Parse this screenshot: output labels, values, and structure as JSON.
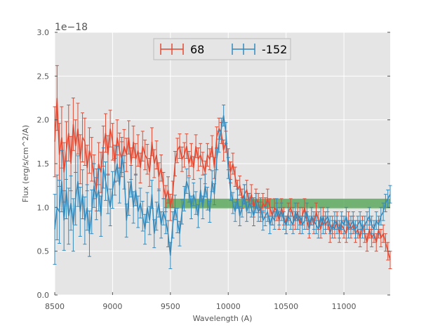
{
  "chart_data": {
    "type": "line",
    "xlabel": "Wavelength (A)",
    "ylabel": "Flux (erg/s/cm^2/A)",
    "offset_text": "1e−18",
    "xlim": [
      8500,
      11400
    ],
    "ylim": [
      0.0,
      3.0
    ],
    "x_ticks": [
      8500,
      9000,
      9500,
      10000,
      10500,
      11000
    ],
    "y_ticks": [
      0.0,
      0.5,
      1.0,
      1.5,
      2.0,
      2.5,
      3.0
    ],
    "x_tick_labels": [
      "8500",
      "9000",
      "9500",
      "10000",
      "10500",
      "11000"
    ],
    "y_tick_labels": [
      "0.0",
      "0.5",
      "1.0",
      "1.5",
      "2.0",
      "2.5",
      "3.0"
    ],
    "grid": true,
    "legend_position": "top-center",
    "background_color": "#e5e5e5",
    "band": {
      "x0": 9450,
      "x1": 11400,
      "y0": 0.99,
      "y1": 1.1,
      "color": "#5da85d"
    },
    "series": [
      {
        "name": "68",
        "color": "#e24a33",
        "x": [
          8500,
          8520,
          8540,
          8560,
          8580,
          8600,
          8620,
          8640,
          8660,
          8680,
          8700,
          8720,
          8740,
          8760,
          8780,
          8800,
          8820,
          8840,
          8860,
          8880,
          8900,
          8920,
          8940,
          8960,
          8980,
          9000,
          9020,
          9040,
          9060,
          9080,
          9100,
          9120,
          9140,
          9160,
          9180,
          9200,
          9220,
          9240,
          9260,
          9280,
          9300,
          9320,
          9340,
          9360,
          9380,
          9400,
          9420,
          9440,
          9460,
          9480,
          9500,
          9520,
          9540,
          9560,
          9580,
          9600,
          9620,
          9640,
          9660,
          9680,
          9700,
          9720,
          9740,
          9760,
          9780,
          9800,
          9820,
          9840,
          9860,
          9880,
          9900,
          9920,
          9940,
          9960,
          9980,
          10000,
          10020,
          10040,
          10060,
          10080,
          10100,
          10120,
          10140,
          10160,
          10180,
          10200,
          10220,
          10240,
          10260,
          10280,
          10300,
          10320,
          10340,
          10360,
          10380,
          10400,
          10420,
          10440,
          10460,
          10480,
          10500,
          10520,
          10540,
          10560,
          10580,
          10600,
          10620,
          10640,
          10660,
          10680,
          10700,
          10720,
          10740,
          10760,
          10780,
          10800,
          10820,
          10840,
          10860,
          10880,
          10900,
          10920,
          10940,
          10960,
          10980,
          11000,
          11020,
          11040,
          11060,
          11080,
          11100,
          11120,
          11140,
          11160,
          11180,
          11200,
          11220,
          11240,
          11260,
          11280,
          11300,
          11320,
          11340,
          11360,
          11380,
          11400
        ],
        "y": [
          1.75,
          2.25,
          1.6,
          1.8,
          1.4,
          1.65,
          1.85,
          1.5,
          1.95,
          1.7,
          1.9,
          1.55,
          1.8,
          1.75,
          1.45,
          1.65,
          1.55,
          1.35,
          1.2,
          1.5,
          1.4,
          1.7,
          1.85,
          1.6,
          1.9,
          1.75,
          1.5,
          1.8,
          1.65,
          1.55,
          1.7,
          1.6,
          1.8,
          1.5,
          1.75,
          1.55,
          1.65,
          1.45,
          1.7,
          1.6,
          1.55,
          1.4,
          1.75,
          1.5,
          1.6,
          1.35,
          1.45,
          1.25,
          1.1,
          1.2,
          1.0,
          1.15,
          1.5,
          1.65,
          1.7,
          1.55,
          1.6,
          1.7,
          1.5,
          1.6,
          1.45,
          1.7,
          1.55,
          1.6,
          1.5,
          1.4,
          1.6,
          1.55,
          1.7,
          1.45,
          1.8,
          1.9,
          1.85,
          1.65,
          1.75,
          1.55,
          1.4,
          1.5,
          1.35,
          1.2,
          1.25,
          1.1,
          1.15,
          1.2,
          1.05,
          1.15,
          1.0,
          1.1,
          1.05,
          0.95,
          1.05,
          1.0,
          1.1,
          1.0,
          0.9,
          1.0,
          0.95,
          0.85,
          1.0,
          0.9,
          0.8,
          0.95,
          1.0,
          0.9,
          0.85,
          0.95,
          0.8,
          0.9,
          1.0,
          0.85,
          0.75,
          0.9,
          0.8,
          0.95,
          0.85,
          0.75,
          0.9,
          0.8,
          0.85,
          0.7,
          0.8,
          0.75,
          0.85,
          0.7,
          0.8,
          0.75,
          0.7,
          0.85,
          0.75,
          0.8,
          0.7,
          0.75,
          0.65,
          0.8,
          0.7,
          0.6,
          0.75,
          0.65,
          0.7,
          0.6,
          0.75,
          0.65,
          0.7,
          0.6,
          0.5,
          0.4
        ],
        "err": [
          0.4,
          0.37,
          0.36,
          0.35,
          0.34,
          0.33,
          0.32,
          0.31,
          0.3,
          0.3,
          0.29,
          0.28,
          0.28,
          0.27,
          0.26,
          0.26,
          0.25,
          0.25,
          0.24,
          0.24,
          0.23,
          0.23,
          0.22,
          0.22,
          0.21,
          0.21,
          0.21,
          0.2,
          0.2,
          0.2,
          0.19,
          0.19,
          0.19,
          0.18,
          0.18,
          0.18,
          0.18,
          0.17,
          0.17,
          0.17,
          0.17,
          0.16,
          0.16,
          0.16,
          0.16,
          0.16,
          0.15,
          0.15,
          0.15,
          0.15,
          0.15,
          0.15,
          0.14,
          0.14,
          0.14,
          0.14,
          0.14,
          0.14,
          0.14,
          0.13,
          0.13,
          0.13,
          0.13,
          0.13,
          0.13,
          0.13,
          0.13,
          0.12,
          0.12,
          0.12,
          0.12,
          0.12,
          0.12,
          0.12,
          0.12,
          0.12,
          0.12,
          0.12,
          0.11,
          0.11,
          0.11,
          0.11,
          0.11,
          0.11,
          0.11,
          0.11,
          0.11,
          0.11,
          0.11,
          0.11,
          0.11,
          0.11,
          0.11,
          0.1,
          0.1,
          0.1,
          0.1,
          0.1,
          0.1,
          0.1,
          0.1,
          0.1,
          0.1,
          0.1,
          0.1,
          0.1,
          0.1,
          0.1,
          0.1,
          0.1,
          0.1,
          0.1,
          0.1,
          0.1,
          0.1,
          0.1,
          0.1,
          0.1,
          0.1,
          0.1,
          0.1,
          0.1,
          0.1,
          0.1,
          0.1,
          0.1,
          0.1,
          0.1,
          0.1,
          0.1,
          0.1,
          0.1,
          0.1,
          0.1,
          0.1,
          0.1,
          0.1,
          0.1,
          0.1,
          0.1,
          0.1,
          0.1,
          0.1,
          0.1,
          0.1,
          0.1
        ]
      },
      {
        "name": "-152",
        "color": "#348abd",
        "x": [
          8500,
          8520,
          8540,
          8560,
          8580,
          8600,
          8620,
          8640,
          8660,
          8680,
          8700,
          8720,
          8740,
          8760,
          8780,
          8800,
          8820,
          8840,
          8860,
          8880,
          8900,
          8920,
          8940,
          8960,
          8980,
          9000,
          9020,
          9040,
          9060,
          9080,
          9100,
          9120,
          9140,
          9160,
          9180,
          9200,
          9220,
          9240,
          9260,
          9280,
          9300,
          9320,
          9340,
          9360,
          9380,
          9400,
          9420,
          9440,
          9460,
          9480,
          9500,
          9520,
          9540,
          9560,
          9580,
          9600,
          9620,
          9640,
          9660,
          9680,
          9700,
          9720,
          9740,
          9760,
          9780,
          9800,
          9820,
          9840,
          9860,
          9880,
          9900,
          9920,
          9940,
          9960,
          9980,
          10000,
          10020,
          10040,
          10060,
          10080,
          10100,
          10120,
          10140,
          10160,
          10180,
          10200,
          10220,
          10240,
          10260,
          10280,
          10300,
          10320,
          10340,
          10360,
          10380,
          10400,
          10420,
          10440,
          10460,
          10480,
          10500,
          10520,
          10540,
          10560,
          10580,
          10600,
          10620,
          10640,
          10660,
          10680,
          10700,
          10720,
          10740,
          10760,
          10780,
          10800,
          10820,
          10840,
          10860,
          10880,
          10900,
          10920,
          10940,
          10960,
          10980,
          11000,
          11020,
          11040,
          11060,
          11080,
          11100,
          11120,
          11140,
          11160,
          11180,
          11200,
          11220,
          11240,
          11260,
          11280,
          11300,
          11320,
          11340,
          11360,
          11380,
          11400
        ],
        "y": [
          0.75,
          1.0,
          0.95,
          1.3,
          0.85,
          1.2,
          0.9,
          1.05,
          0.8,
          1.1,
          1.3,
          0.95,
          1.15,
          0.85,
          1.0,
          0.7,
          0.95,
          1.25,
          1.1,
          1.2,
          0.9,
          1.45,
          1.3,
          1.15,
          1.0,
          1.2,
          1.35,
          1.5,
          1.25,
          1.6,
          1.4,
          0.85,
          1.1,
          1.3,
          1.0,
          1.2,
          0.95,
          1.05,
          0.9,
          0.75,
          1.0,
          0.85,
          1.15,
          0.7,
          0.9,
          1.05,
          0.8,
          0.95,
          0.85,
          0.7,
          0.45,
          0.8,
          1.0,
          0.85,
          0.7,
          0.95,
          1.1,
          1.3,
          1.2,
          1.0,
          1.15,
          1.05,
          0.9,
          1.2,
          1.0,
          1.25,
          1.1,
          0.95,
          1.3,
          1.15,
          1.55,
          1.75,
          1.9,
          2.05,
          1.85,
          1.45,
          1.2,
          1.05,
          0.95,
          1.1,
          0.9,
          1.0,
          1.15,
          0.95,
          1.05,
          1.0,
          0.9,
          1.05,
          0.95,
          1.0,
          0.85,
          0.9,
          0.95,
          0.8,
          0.9,
          0.85,
          1.0,
          0.9,
          0.95,
          0.85,
          0.8,
          0.9,
          0.85,
          0.8,
          0.95,
          0.85,
          0.9,
          0.8,
          0.85,
          0.95,
          0.8,
          0.9,
          0.85,
          0.8,
          0.75,
          0.9,
          0.8,
          0.85,
          0.9,
          0.8,
          0.75,
          0.85,
          0.8,
          0.75,
          0.85,
          0.8,
          0.9,
          0.75,
          0.8,
          0.85,
          0.75,
          0.8,
          0.85,
          0.75,
          0.8,
          0.85,
          0.9,
          0.8,
          0.75,
          0.85,
          0.8,
          0.9,
          0.95,
          1.05,
          1.1,
          1.15
        ],
        "err": [
          0.4,
          0.37,
          0.36,
          0.35,
          0.34,
          0.33,
          0.32,
          0.31,
          0.3,
          0.3,
          0.29,
          0.28,
          0.28,
          0.27,
          0.26,
          0.26,
          0.25,
          0.25,
          0.24,
          0.24,
          0.23,
          0.23,
          0.22,
          0.22,
          0.21,
          0.21,
          0.21,
          0.2,
          0.2,
          0.2,
          0.19,
          0.19,
          0.19,
          0.18,
          0.18,
          0.18,
          0.18,
          0.17,
          0.17,
          0.17,
          0.17,
          0.16,
          0.16,
          0.16,
          0.16,
          0.16,
          0.15,
          0.15,
          0.15,
          0.15,
          0.15,
          0.15,
          0.14,
          0.14,
          0.14,
          0.14,
          0.14,
          0.14,
          0.14,
          0.13,
          0.13,
          0.13,
          0.13,
          0.13,
          0.13,
          0.13,
          0.13,
          0.12,
          0.12,
          0.12,
          0.12,
          0.12,
          0.12,
          0.12,
          0.12,
          0.12,
          0.12,
          0.12,
          0.11,
          0.11,
          0.11,
          0.11,
          0.11,
          0.11,
          0.11,
          0.11,
          0.11,
          0.11,
          0.11,
          0.11,
          0.11,
          0.11,
          0.11,
          0.1,
          0.1,
          0.1,
          0.1,
          0.1,
          0.1,
          0.1,
          0.1,
          0.1,
          0.1,
          0.1,
          0.1,
          0.1,
          0.1,
          0.1,
          0.1,
          0.1,
          0.1,
          0.1,
          0.1,
          0.1,
          0.1,
          0.1,
          0.1,
          0.1,
          0.1,
          0.1,
          0.1,
          0.1,
          0.1,
          0.1,
          0.1,
          0.1,
          0.1,
          0.1,
          0.1,
          0.1,
          0.1,
          0.1,
          0.1,
          0.1,
          0.1,
          0.1,
          0.1,
          0.1,
          0.1,
          0.1,
          0.1,
          0.1,
          0.1,
          0.1,
          0.1,
          0.1
        ]
      }
    ]
  }
}
